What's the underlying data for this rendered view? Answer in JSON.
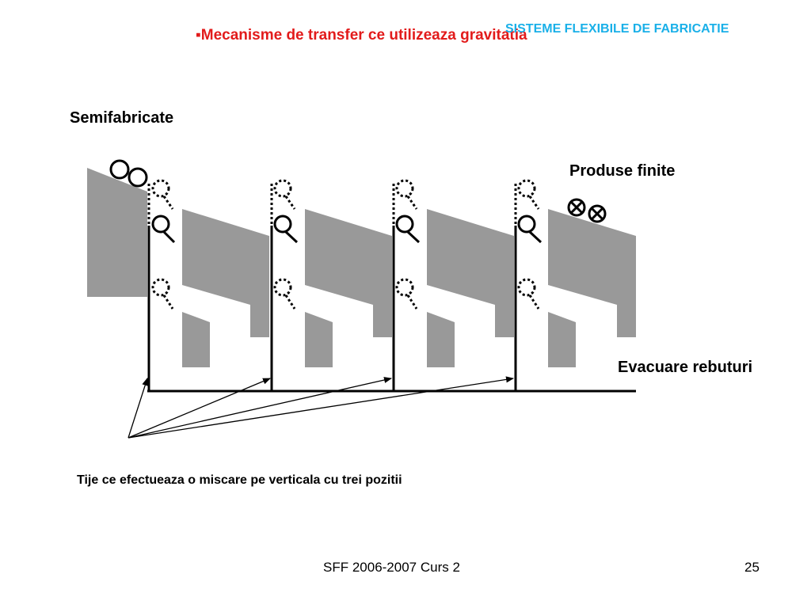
{
  "header": {
    "course_title": "SISTEME FLEXIBILE DE FABRICATIE",
    "slide_title": "▪Mecanisme de transfer ce utilizeaza gravitatia"
  },
  "diagram": {
    "label_input": "Semifabricate",
    "label_finished": "Produse finite",
    "label_rejects": "Evacuare rebuturi",
    "label_rods": "Tije ce efectueaza o miscare pe verticala cu trei pozitii"
  },
  "footer": {
    "course": "SFF 2006-2007  Curs 2",
    "page": "25"
  },
  "colors": {
    "title_red": "#e21b1b",
    "header_blue": "#1ab0e8",
    "ramp_gray": "#999999"
  }
}
